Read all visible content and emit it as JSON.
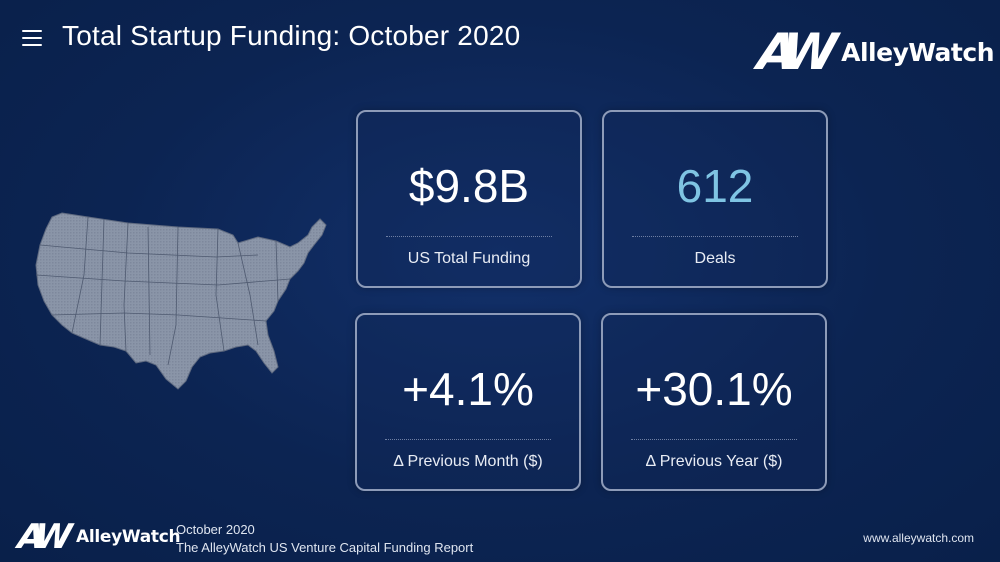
{
  "header": {
    "menu_icon": "hamburger-menu-icon",
    "title": "Total Startup Funding: October 2020"
  },
  "brand": {
    "mark": "AW",
    "name": "AlleyWatch"
  },
  "map": {
    "icon": "us-map-icon",
    "fill_color": "#8a95a8"
  },
  "stats": [
    {
      "value": "$9.8B",
      "label": "US Total Funding",
      "color": "#ffffff"
    },
    {
      "value": "612",
      "label": "Deals",
      "color": "#7fc4e3"
    },
    {
      "value": "+4.1%",
      "label": "Δ Previous Month ($)",
      "color": "#ffffff"
    },
    {
      "value": "+30.1%",
      "label": "Δ Previous Year ($)",
      "color": "#ffffff"
    }
  ],
  "footer": {
    "brand_mark": "AW",
    "brand_name": "AlleyWatch",
    "date": "October 2020",
    "report": "The AlleyWatch US Venture Capital Funding Report",
    "url": "www.alleywatch.com"
  },
  "colors": {
    "background": "#0c2452",
    "card_border": "#8d9bb8",
    "accent": "#7fc4e3"
  }
}
